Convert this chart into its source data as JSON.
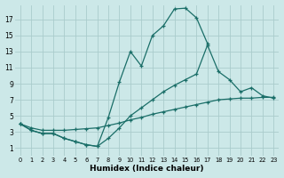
{
  "xlabel": "Humidex (Indice chaleur)",
  "background_color": "#cce8e8",
  "grid_color": "#aacccc",
  "line_color": "#1a6e68",
  "xlim": [
    -0.5,
    23.5
  ],
  "ylim": [
    0,
    18.8
  ],
  "xticks": [
    0,
    1,
    2,
    3,
    4,
    5,
    6,
    7,
    8,
    9,
    10,
    11,
    12,
    13,
    14,
    15,
    16,
    17,
    18,
    19,
    20,
    21,
    22,
    23
  ],
  "yticks": [
    1,
    3,
    5,
    7,
    9,
    11,
    13,
    15,
    17
  ],
  "curve1_x": [
    0,
    1,
    2,
    3,
    4,
    5,
    6,
    7,
    8,
    9,
    10,
    11,
    12,
    13,
    14,
    15,
    16,
    17
  ],
  "curve1_y": [
    4.0,
    3.2,
    2.8,
    2.8,
    2.2,
    1.8,
    1.4,
    1.2,
    4.8,
    9.2,
    13.0,
    11.2,
    15.0,
    16.2,
    18.3,
    18.4,
    17.2,
    14.0
  ],
  "curve2_x": [
    0,
    1,
    2,
    3,
    4,
    5,
    6,
    7,
    8,
    9,
    10,
    11,
    12,
    13,
    14,
    15,
    16,
    17,
    18,
    19,
    20,
    21,
    22,
    23
  ],
  "curve2_y": [
    4.0,
    3.5,
    3.2,
    3.2,
    3.2,
    3.3,
    3.4,
    3.5,
    3.8,
    4.1,
    4.5,
    4.8,
    5.2,
    5.5,
    5.8,
    6.1,
    6.4,
    6.7,
    7.0,
    7.1,
    7.2,
    7.2,
    7.3,
    7.3
  ],
  "curve3_x": [
    0,
    1,
    2,
    3,
    4,
    5,
    6,
    7,
    8,
    9,
    10,
    11,
    12,
    13,
    14,
    15,
    16,
    17,
    18,
    19,
    20,
    21,
    22,
    23
  ],
  "curve3_y": [
    4.0,
    3.2,
    2.8,
    2.8,
    2.2,
    1.8,
    1.4,
    1.2,
    2.2,
    3.5,
    5.0,
    6.0,
    7.0,
    8.0,
    8.8,
    9.5,
    10.2,
    13.8,
    10.5,
    9.5,
    8.0,
    8.5,
    7.5,
    7.2
  ]
}
